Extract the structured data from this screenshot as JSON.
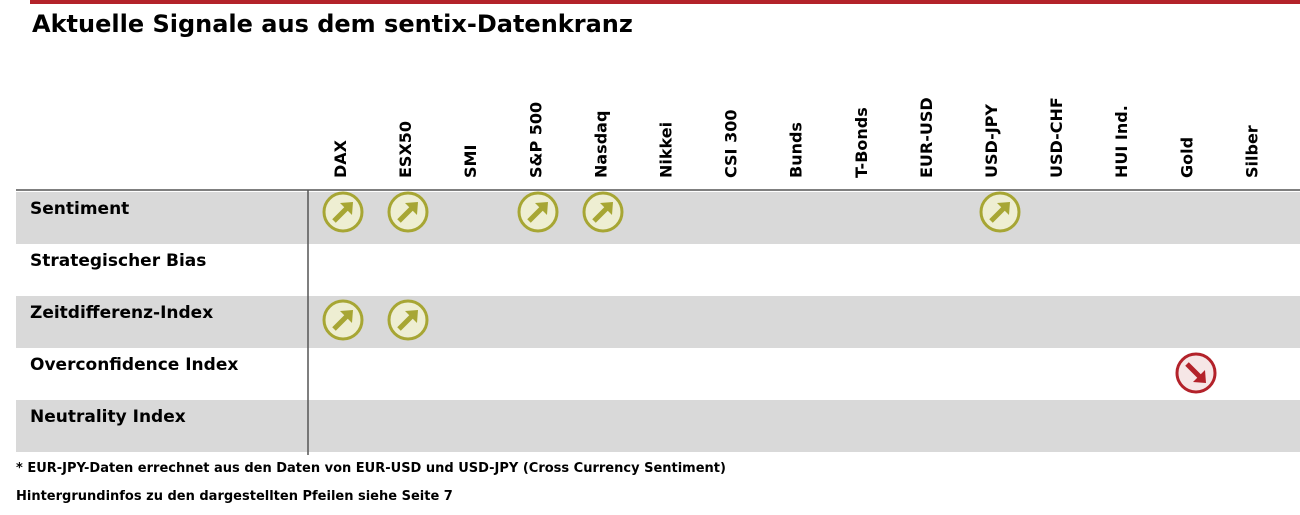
{
  "header": {
    "title": "Aktuelle Signale aus dem sentix-Datenkranz"
  },
  "table": {
    "columns": [
      "DAX",
      "ESX50",
      "SMI",
      "S&P 500",
      "Nasdaq",
      "Nikkei",
      "CSI 300",
      "Bunds",
      "T-Bonds",
      "EUR-USD",
      "USD-JPY",
      "USD-CHF",
      "HUI Ind.",
      "Gold",
      "Silber"
    ],
    "rows": [
      "Sentiment",
      "Strategischer Bias",
      "Zeitdifferenz-Index",
      "Overconfidence Index",
      "Neutrality Index"
    ]
  },
  "footnotes": [
    "* EUR-JPY-Daten errechnet aus den Daten von EUR-USD und USD-JPY (Cross Currency Sentiment)",
    "Hintergrundinfos zu den dargestellten Pfeilen siehe Seite 7"
  ]
}
